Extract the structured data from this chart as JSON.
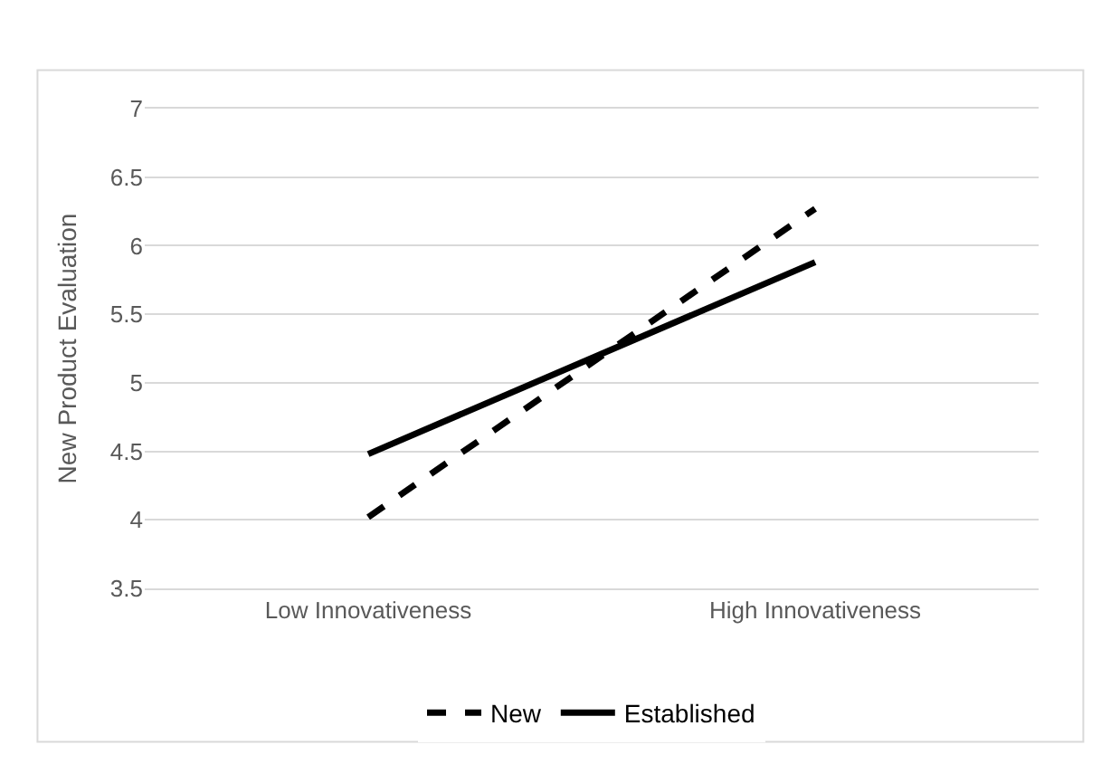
{
  "chart_data": {
    "type": "line",
    "ylabel": "New Product Evaluation",
    "categories": [
      "Low Innovativeness",
      "High Innovativeness"
    ],
    "series": [
      {
        "name": "New",
        "color": "#000000",
        "line_style": "dashed",
        "values": [
          4.02,
          6.27
        ]
      },
      {
        "name": "Established",
        "color": "#000000",
        "line_style": "solid",
        "values": [
          4.48,
          5.88
        ]
      }
    ],
    "ylim": [
      3.5,
      7
    ],
    "yticks": [
      3.5,
      4,
      4.5,
      5,
      5.5,
      6,
      6.5,
      7
    ],
    "grid": "y",
    "legend": "bottom",
    "marker": "none"
  }
}
